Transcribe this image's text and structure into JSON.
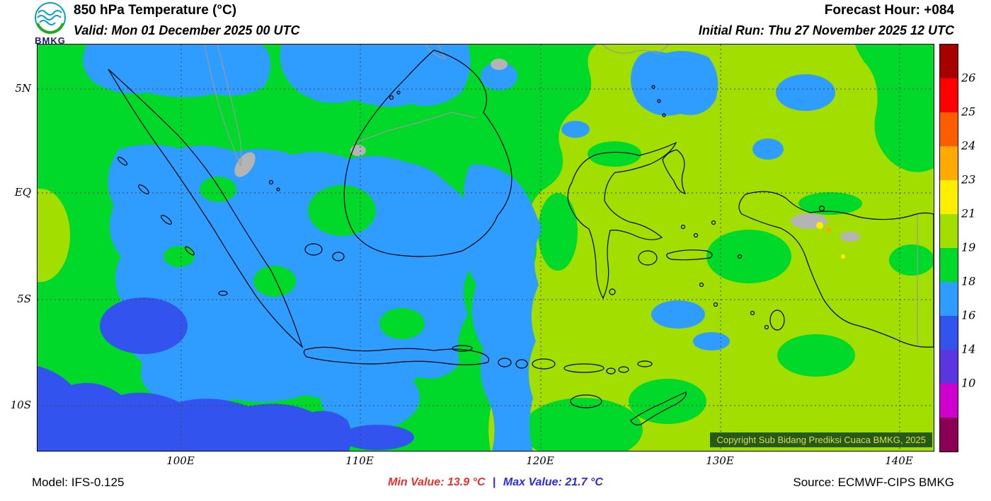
{
  "header": {
    "logo_text": "BMKG",
    "title": "850 hPa Temperature (°C)",
    "valid": "Valid: Mon 01 December 2025 00 UTC",
    "forecast_hour": "Forecast Hour: +084",
    "initial_run": "Initial Run: Thu 27 November 2025 12 UTC"
  },
  "map": {
    "y_axis_labels": [
      "5N",
      "EQ",
      "5S",
      "10S"
    ],
    "x_axis_labels": [
      "100E",
      "110E",
      "120E",
      "130E",
      "140E"
    ],
    "copyright": "Copyright Sub Bidang Prediksi Cuaca BMKG, 2025"
  },
  "colorbar": {
    "labels": [
      "26",
      "25",
      "24",
      "23",
      "21",
      "19",
      "18",
      "16",
      "14",
      "10"
    ],
    "colors": [
      "#a80000",
      "#fe0000",
      "#ff5c00",
      "#ffaa00",
      "#ffee00",
      "#a2df00",
      "#00d82a",
      "#2f9dff",
      "#3353ef",
      "#5a35e0",
      "#cf00cf",
      "#8b0055"
    ]
  },
  "footer": {
    "model": "Model: IFS-0.125",
    "min_value": "Min Value: 13.9 °C",
    "separator": "|",
    "max_value": "Max Value: 21.7 °C",
    "source": "Source: ECMWF-CIPS BMKG"
  },
  "palette": {
    "green": "#00d82a",
    "yellowgreen": "#a2df00",
    "lightblue": "#2f9dff",
    "royalblue": "#3353ef",
    "gray": "#b4b4b4",
    "yellow": "#ffee00",
    "orange": "#ffa500",
    "coast": "#000000",
    "foreign_coast": "#9a9a9a",
    "grid": "#444444",
    "min_text": "#e83030",
    "max_text": "#2a2ae8",
    "copyright_bg": "#1c4f1c",
    "copyright_text": "#e3dc52"
  }
}
